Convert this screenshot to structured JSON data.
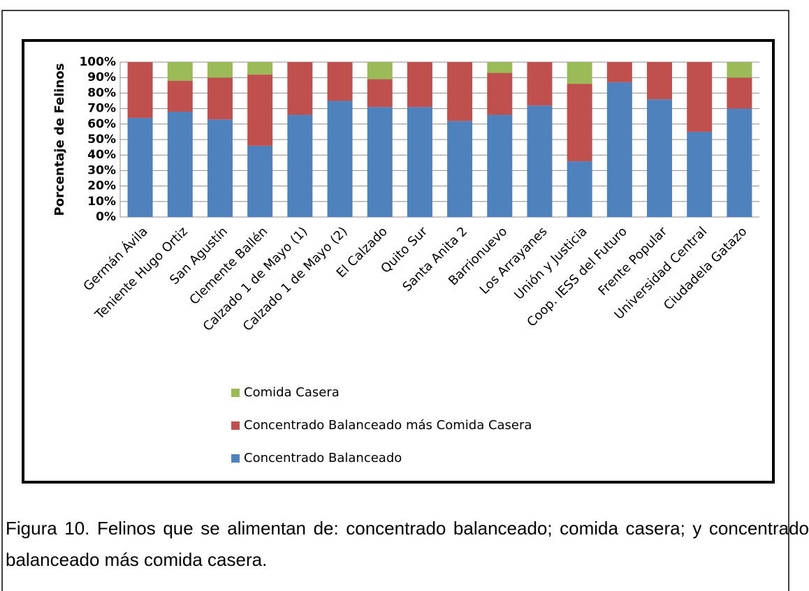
{
  "chart_data": {
    "type": "stacked_bar",
    "y_label": "Porcentaje de Felinos",
    "categories": [
      "Germán Ávila",
      "Teniente Hugo Ortiz",
      "San Agustín",
      "Clemente Ballén",
      "Calzado 1 de Mayo (1)",
      "Calzado 1 de Mayo (2)",
      "El Calzado",
      "Quito Sur",
      "Santa Anita 2",
      "Barrionuevo",
      "Los Arrayanes",
      "Unión y Justicia",
      "Coop. IESS del Futuro",
      "Frente Popular",
      "Universidad Central",
      "Ciudadela Gatazo"
    ],
    "series": [
      {
        "name": "Concentrado Balanceado",
        "color": "#4f81bd",
        "values": [
          64,
          68,
          63,
          46,
          66,
          75,
          71,
          71,
          62,
          66,
          72,
          36,
          87,
          76,
          55,
          70
        ]
      },
      {
        "name": "Concentrado Balanceado más Comida Casera",
        "color": "#c0504d",
        "values": [
          36,
          20,
          27,
          46,
          34,
          25,
          18,
          29,
          38,
          27,
          28,
          50,
          13,
          24,
          45,
          20
        ]
      },
      {
        "name": "Comida Casera",
        "color": "#9bbb59",
        "values": [
          0,
          12,
          10,
          8,
          0,
          0,
          11,
          0,
          0,
          7,
          0,
          14,
          0,
          0,
          0,
          10
        ]
      }
    ],
    "ylim": [
      0,
      100
    ],
    "yticks": [
      {
        "value": 0,
        "label": "0%"
      },
      {
        "value": 10,
        "label": "10%"
      },
      {
        "value": 20,
        "label": "20%"
      },
      {
        "value": 30,
        "label": "30%"
      },
      {
        "value": 40,
        "label": "40%"
      },
      {
        "value": 50,
        "label": "50%"
      },
      {
        "value": 60,
        "label": "60%"
      },
      {
        "value": 70,
        "label": "70%"
      },
      {
        "value": 80,
        "label": "80%"
      },
      {
        "value": 90,
        "label": "90%"
      },
      {
        "value": 100,
        "label": "100%"
      }
    ],
    "grid": true
  },
  "caption": "Figura 10. Felinos que se alimentan de: concentrado balanceado; comida casera; y concentrado balanceado más comida casera."
}
